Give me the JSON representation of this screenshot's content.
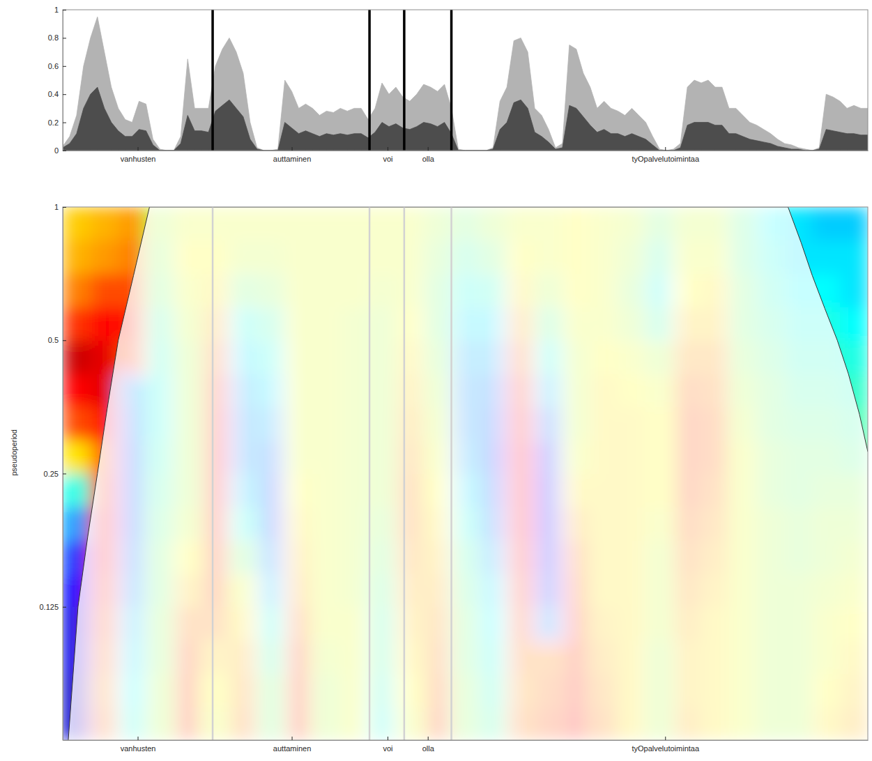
{
  "chart_data": [
    {
      "type": "area",
      "x": [
        0,
        0.025,
        0.05,
        0.075,
        0.1,
        0.125,
        0.15,
        0.175,
        0.2,
        0.225,
        0.25,
        0.275,
        0.3,
        0.325,
        0.35,
        0.375,
        0.4,
        0.425,
        0.45,
        0.475,
        0.5,
        0.525,
        0.55,
        0.575,
        0.6,
        0.625,
        0.65,
        0.675,
        0.7,
        0.725,
        0.75,
        0.775,
        0.8,
        0.825,
        0.85,
        0.875,
        0.9,
        0.925,
        0.95,
        0.975,
        1,
        1.025,
        1.05,
        1.075,
        1.1,
        1.125,
        1.15,
        1.175,
        1.2,
        1.225,
        1.25,
        1.275,
        1.3,
        1.325,
        1.35,
        1.375,
        1.4,
        1.425,
        1.45,
        1.475,
        1.5,
        1.525,
        1.55,
        1.575,
        1.6,
        1.625,
        1.65,
        1.675,
        1.7,
        1.725,
        1.75,
        1.775,
        1.8,
        1.825,
        1.85,
        1.875,
        1.9,
        1.925,
        1.95,
        1.975,
        2,
        2.025,
        2.05,
        2.075,
        2.1,
        2.125,
        2.15,
        2.175,
        2.2,
        2.225,
        2.25,
        2.275,
        2.3,
        2.325,
        2.35,
        2.375,
        2.4,
        2.425,
        2.45,
        2.475,
        2.5,
        2.525,
        2.55,
        2.575,
        2.6,
        2.625,
        2.65,
        2.675,
        2.7,
        2.725,
        2.75,
        2.775,
        2.8,
        2.825,
        2.85,
        2.875,
        2.9
      ],
      "series": [
        {
          "color": "#b3b3b3",
          "values": [
            0.03,
            0.1,
            0.25,
            0.6,
            0.8,
            0.95,
            0.7,
            0.45,
            0.3,
            0.22,
            0.2,
            0.35,
            0.33,
            0.08,
            0.01,
            0,
            0,
            0.1,
            0.65,
            0.3,
            0.3,
            0.3,
            0.6,
            0.72,
            0.8,
            0.7,
            0.55,
            0.2,
            0.02,
            0,
            0,
            0.01,
            0.5,
            0.42,
            0.3,
            0.33,
            0.3,
            0.25,
            0.28,
            0.27,
            0.3,
            0.28,
            0.3,
            0.3,
            0.22,
            0.3,
            0.48,
            0.4,
            0.45,
            0.38,
            0.35,
            0.4,
            0.47,
            0.45,
            0.42,
            0.47,
            0.3,
            0.01,
            0,
            0,
            0,
            0,
            0.02,
            0.35,
            0.45,
            0.78,
            0.8,
            0.7,
            0.3,
            0.25,
            0.15,
            0.02,
            0.05,
            0.75,
            0.72,
            0.55,
            0.45,
            0.3,
            0.35,
            0.3,
            0.28,
            0.25,
            0.3,
            0.25,
            0.2,
            0.1,
            0.01,
            0,
            0.01,
            0.05,
            0.45,
            0.5,
            0.48,
            0.5,
            0.45,
            0.45,
            0.3,
            0.3,
            0.25,
            0.2,
            0.18,
            0.15,
            0.12,
            0.08,
            0.05,
            0.04,
            0.02,
            0.01,
            0,
            0.02,
            0.4,
            0.38,
            0.35,
            0.3,
            0.32,
            0.3,
            0.3
          ]
        },
        {
          "color": "#4d4d4d",
          "values": [
            0.02,
            0.05,
            0.12,
            0.3,
            0.4,
            0.45,
            0.3,
            0.2,
            0.14,
            0.1,
            0.1,
            0.15,
            0.14,
            0.04,
            0,
            0,
            0,
            0.05,
            0.25,
            0.14,
            0.14,
            0.13,
            0.28,
            0.32,
            0.36,
            0.3,
            0.24,
            0.08,
            0.01,
            0,
            0,
            0,
            0.2,
            0.16,
            0.12,
            0.14,
            0.12,
            0.1,
            0.12,
            0.11,
            0.12,
            0.11,
            0.12,
            0.12,
            0.09,
            0.13,
            0.2,
            0.17,
            0.19,
            0.16,
            0.15,
            0.17,
            0.2,
            0.19,
            0.17,
            0.2,
            0.12,
            0,
            0,
            0,
            0,
            0,
            0.01,
            0.15,
            0.2,
            0.34,
            0.36,
            0.3,
            0.13,
            0.1,
            0.06,
            0.01,
            0.02,
            0.32,
            0.3,
            0.24,
            0.18,
            0.13,
            0.15,
            0.12,
            0.12,
            0.1,
            0.12,
            0.1,
            0.08,
            0.04,
            0,
            0,
            0,
            0.02,
            0.18,
            0.2,
            0.2,
            0.2,
            0.18,
            0.18,
            0.12,
            0.12,
            0.1,
            0.08,
            0.07,
            0.06,
            0.05,
            0.03,
            0.02,
            0.01,
            0.01,
            0,
            0,
            0.01,
            0.15,
            0.14,
            0.13,
            0.12,
            0.12,
            0.11,
            0.11
          ]
        }
      ],
      "xlim": [
        0,
        2.9
      ],
      "ylim": [
        0,
        1
      ],
      "yticks": [
        0,
        0.2,
        0.4,
        0.6,
        0.8,
        1
      ],
      "xticks": [
        {
          "value": 0.27,
          "label": "vanhusten"
        },
        {
          "value": 0.825,
          "label": "auttaminen"
        },
        {
          "value": 1.17,
          "label": "voi"
        },
        {
          "value": 1.315,
          "label": "olla"
        },
        {
          "value": 2.17,
          "label": "tyOpalvelutoimintaa"
        }
      ],
      "boundaries": [
        0.54,
        1.105,
        1.23,
        1.4
      ]
    },
    {
      "type": "heatmap",
      "ylabel": "pseudoperiod",
      "log": "y",
      "x": [
        0.05,
        0.15,
        0.25,
        0.35,
        0.45,
        0.55,
        0.65,
        0.75,
        0.85,
        0.95,
        1.05,
        1.15,
        1.25,
        1.35,
        1.45,
        1.55,
        1.65,
        1.75,
        1.85,
        1.95,
        2.05,
        2.15,
        2.25,
        2.35,
        2.45,
        2.55,
        2.65,
        2.75,
        2.85
      ],
      "periods": [
        0.0682,
        0.081,
        0.0964,
        0.1146,
        0.1363,
        0.1621,
        0.1928,
        0.2293,
        0.2726,
        0.3242,
        0.3855,
        0.4585,
        0.5453,
        0.6484,
        0.7711,
        0.917
      ],
      "cells": [
        [
          -0.85,
          0.5,
          -0.2,
          0.1,
          0.7,
          0.2,
          0.5,
          0.0,
          0.7,
          0.1,
          0.2,
          -0.2,
          0.2,
          0.6,
          0.05,
          -0.1,
          0.5,
          0.6,
          0.75,
          0.5,
          0.3,
          0.1,
          0.4,
          0.3,
          0.2,
          0.1,
          0.1,
          0.3,
          0.4
        ],
        [
          -0.85,
          0.45,
          -0.25,
          0.1,
          0.65,
          0.25,
          0.45,
          0.0,
          0.65,
          0.1,
          0.2,
          -0.15,
          0.25,
          0.55,
          0.05,
          -0.15,
          0.45,
          0.55,
          0.7,
          0.45,
          0.3,
          0.1,
          0.35,
          0.3,
          0.2,
          0.1,
          0.1,
          0.25,
          0.35
        ],
        [
          -0.8,
          0.5,
          -0.3,
          0.05,
          0.6,
          0.35,
          0.4,
          -0.1,
          0.6,
          0.15,
          0.2,
          -0.1,
          0.3,
          0.5,
          0.0,
          -0.2,
          0.5,
          0.5,
          0.65,
          0.4,
          0.3,
          0.1,
          0.35,
          0.3,
          0.2,
          0.1,
          0.1,
          0.2,
          0.3
        ],
        [
          -0.8,
          0.55,
          -0.35,
          0.05,
          0.5,
          0.5,
          0.3,
          -0.2,
          0.5,
          0.2,
          0.2,
          -0.1,
          0.35,
          0.45,
          0.0,
          -0.25,
          0.55,
          -0.45,
          0.6,
          0.35,
          0.3,
          0.15,
          0.4,
          0.3,
          0.2,
          0.1,
          0.1,
          0.2,
          0.25
        ],
        [
          -0.75,
          0.6,
          -0.45,
          0.0,
          0.35,
          0.6,
          0.2,
          -0.35,
          0.4,
          0.2,
          0.15,
          -0.05,
          0.4,
          0.4,
          -0.05,
          -0.3,
          0.6,
          -0.6,
          0.55,
          0.3,
          0.3,
          0.15,
          0.45,
          0.35,
          0.2,
          0.1,
          0.1,
          0.15,
          0.2
        ],
        [
          -0.65,
          0.65,
          -0.5,
          0.0,
          0.25,
          0.65,
          0.0,
          -0.45,
          0.35,
          0.2,
          0.15,
          0.0,
          0.45,
          0.35,
          -0.1,
          -0.4,
          0.65,
          -0.65,
          0.5,
          0.3,
          0.3,
          0.15,
          0.5,
          0.4,
          0.2,
          0.1,
          0.05,
          0.1,
          0.15
        ],
        [
          -0.45,
          0.65,
          -0.55,
          -0.05,
          0.15,
          0.7,
          -0.2,
          -0.55,
          0.3,
          0.2,
          0.15,
          0.05,
          0.5,
          0.3,
          -0.2,
          -0.5,
          0.7,
          -0.7,
          0.4,
          0.3,
          0.3,
          0.2,
          0.55,
          0.45,
          0.2,
          0.1,
          0.05,
          0.1,
          0.1
        ],
        [
          -0.2,
          0.6,
          -0.55,
          -0.1,
          0.1,
          0.7,
          -0.35,
          -0.55,
          0.25,
          0.2,
          0.15,
          0.1,
          0.5,
          0.25,
          -0.3,
          -0.55,
          0.7,
          -0.7,
          0.3,
          0.3,
          0.3,
          0.25,
          0.6,
          0.5,
          0.2,
          0.05,
          0.0,
          0.05,
          0.05
        ],
        [
          0.3,
          0.55,
          -0.55,
          -0.15,
          0.1,
          0.7,
          -0.45,
          -0.5,
          0.2,
          0.2,
          0.15,
          0.1,
          0.45,
          0.2,
          -0.4,
          -0.6,
          0.7,
          -0.65,
          0.2,
          0.3,
          0.3,
          0.25,
          0.6,
          0.55,
          0.2,
          0.05,
          0.0,
          0.0,
          -0.05
        ],
        [
          0.6,
          0.7,
          -0.5,
          -0.2,
          0.1,
          0.65,
          -0.45,
          -0.4,
          0.2,
          0.2,
          0.15,
          0.1,
          0.4,
          0.15,
          -0.45,
          -0.55,
          0.65,
          -0.5,
          0.15,
          0.3,
          0.3,
          0.25,
          0.6,
          0.55,
          0.15,
          0.0,
          -0.05,
          -0.05,
          -0.1
        ],
        [
          0.75,
          0.8,
          -0.45,
          -0.2,
          0.1,
          0.6,
          -0.4,
          -0.3,
          0.2,
          0.2,
          0.15,
          0.1,
          0.35,
          0.1,
          -0.45,
          -0.5,
          0.6,
          -0.35,
          0.15,
          0.3,
          0.25,
          0.2,
          0.55,
          0.5,
          0.1,
          0.0,
          -0.1,
          -0.1,
          -0.15
        ],
        [
          0.85,
          0.8,
          0.6,
          -0.15,
          0.1,
          0.5,
          -0.3,
          -0.2,
          0.2,
          0.2,
          0.15,
          0.1,
          0.3,
          0.05,
          -0.4,
          -0.4,
          0.5,
          -0.2,
          0.15,
          0.25,
          0.2,
          0.1,
          0.45,
          0.45,
          0.05,
          -0.05,
          -0.15,
          -0.15,
          -0.2
        ],
        [
          0.65,
          0.75,
          0.7,
          -0.1,
          0.15,
          0.4,
          -0.2,
          -0.1,
          0.2,
          0.2,
          0.15,
          0.1,
          0.25,
          0.0,
          -0.3,
          -0.3,
          0.4,
          -0.05,
          0.2,
          0.2,
          0.1,
          -0.1,
          0.35,
          0.35,
          0.0,
          -0.1,
          -0.2,
          -0.2,
          -0.25
        ],
        [
          0.5,
          0.6,
          0.6,
          0.0,
          0.2,
          0.3,
          0.0,
          0.05,
          0.2,
          0.2,
          0.2,
          0.15,
          0.2,
          0.0,
          -0.2,
          -0.15,
          0.3,
          0.1,
          0.25,
          0.2,
          0.05,
          -0.2,
          0.25,
          0.3,
          0.0,
          -0.15,
          -0.25,
          -0.25,
          -0.3
        ],
        [
          0.4,
          0.45,
          0.5,
          0.05,
          0.25,
          0.25,
          0.15,
          0.15,
          0.2,
          0.2,
          0.2,
          0.2,
          0.2,
          0.05,
          -0.1,
          0.0,
          0.25,
          0.2,
          0.25,
          0.2,
          0.1,
          -0.1,
          0.2,
          0.2,
          -0.05,
          -0.2,
          -0.3,
          -0.3,
          -0.3
        ],
        [
          0.35,
          0.4,
          0.45,
          0.1,
          0.2,
          0.2,
          0.2,
          0.2,
          0.2,
          0.2,
          0.2,
          0.2,
          0.2,
          0.1,
          0.0,
          0.1,
          0.2,
          0.2,
          0.25,
          0.2,
          0.15,
          0.0,
          0.15,
          0.15,
          -0.05,
          -0.25,
          -0.3,
          -0.35,
          -0.35
        ]
      ],
      "clim": [
        -1,
        1
      ],
      "coi_x": [
        0.02,
        0.055,
        0.09,
        0.125,
        0.16,
        0.2,
        0.255,
        0.3125,
        2.6125,
        2.66,
        2.7,
        2.745,
        2.79,
        2.83,
        2.87,
        2.9
      ],
      "coi": [
        0.0625,
        0.125,
        0.18,
        0.25,
        0.35,
        0.5,
        0.7,
        1,
        1,
        0.83,
        0.7,
        0.59,
        0.5,
        0.42,
        0.34,
        0.28
      ],
      "xlim": [
        0,
        2.9
      ],
      "ylim": [
        0.0625,
        1
      ],
      "yticks": [
        0.125,
        0.25,
        0.5,
        1
      ],
      "xticks": [
        {
          "value": 0.27,
          "label": "vanhusten"
        },
        {
          "value": 0.825,
          "label": "auttaminen"
        },
        {
          "value": 1.17,
          "label": "voi"
        },
        {
          "value": 1.315,
          "label": "olla"
        },
        {
          "value": 2.17,
          "label": "tyOpalvelutoimintaa"
        }
      ],
      "boundaries": [
        0.54,
        1.105,
        1.23,
        1.4
      ]
    }
  ]
}
